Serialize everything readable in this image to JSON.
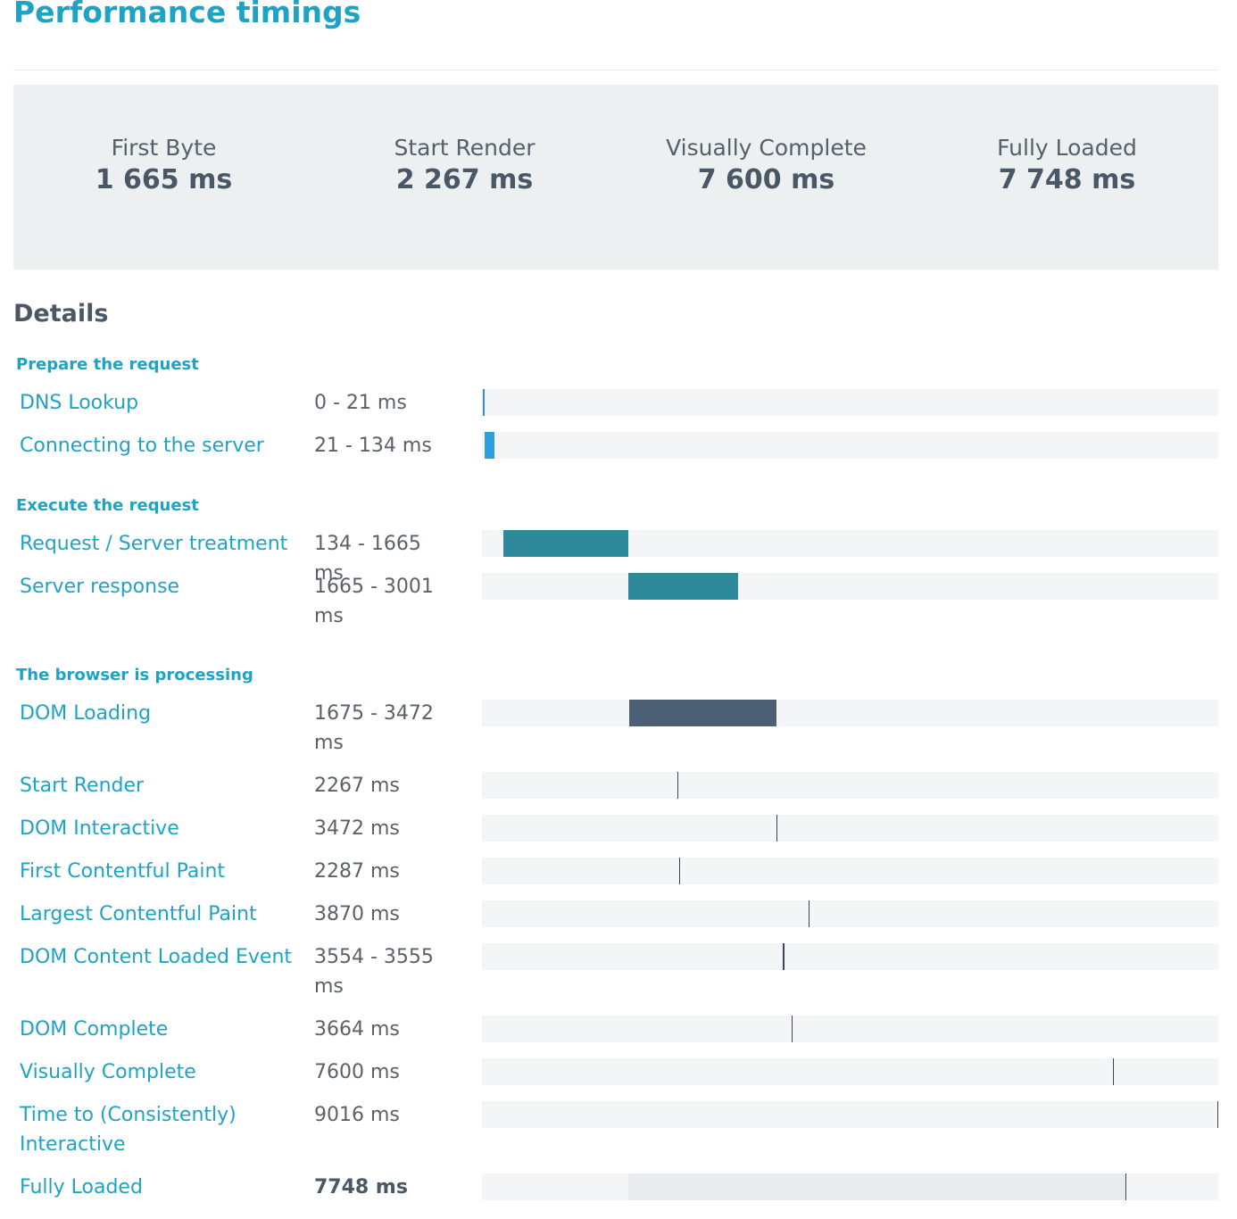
{
  "header": {
    "title": "Performance timings"
  },
  "summary": {
    "metrics": [
      {
        "label": "First Byte",
        "value": "1 665 ms"
      },
      {
        "label": "Start Render",
        "value": "2 267 ms"
      },
      {
        "label": "Visually Complete",
        "value": "7 600 ms"
      },
      {
        "label": "Fully Loaded",
        "value": "7 748 ms"
      }
    ]
  },
  "details": {
    "heading": "Details",
    "timeline_max_ms": 9016,
    "sections": [
      {
        "title": "Prepare the request",
        "rows": [
          {
            "label": "DNS Lookup",
            "time": "0 - 21 ms",
            "start": 0,
            "end": 21,
            "kind": "tick",
            "color": "#2d8fd6"
          },
          {
            "label": "Connecting to the server",
            "time": "21 - 134 ms",
            "start": 21,
            "end": 134,
            "kind": "bar",
            "color": "#2d9ee0"
          }
        ]
      },
      {
        "title": "Execute the request",
        "rows": [
          {
            "label": "Request / Server treatment",
            "time": "134 - 1665 ms",
            "start": 134,
            "end": 1665,
            "kind": "bar",
            "color": "#2e8a9b"
          },
          {
            "label": "Server response",
            "time": "1665 - 3001 ms",
            "start": 1665,
            "end": 3001,
            "kind": "bar",
            "color": "#2e8a9b"
          }
        ]
      },
      {
        "title": "The browser is processing",
        "rows": [
          {
            "label": "DOM Loading",
            "time": "1675 - 3472 ms",
            "start": 1675,
            "end": 3472,
            "kind": "bar",
            "color": "#4d5f74"
          },
          {
            "label": "Start Render",
            "time": "2267 ms",
            "start": 2267,
            "kind": "tick"
          },
          {
            "label": "DOM Interactive",
            "time": "3472 ms",
            "start": 3472,
            "kind": "tick"
          },
          {
            "label": "First Contentful Paint",
            "time": "2287 ms",
            "start": 2287,
            "kind": "tick"
          },
          {
            "label": "Largest Contentful Paint",
            "time": "3870 ms",
            "start": 3870,
            "kind": "tick"
          },
          {
            "label": "DOM Content Loaded Event",
            "time": "3554 - 3555 ms",
            "start": 3554,
            "end": 3555,
            "kind": "tick"
          },
          {
            "label": "DOM Complete",
            "time": "3664 ms",
            "start": 3664,
            "kind": "tick"
          },
          {
            "label": "Visually Complete",
            "time": "7600 ms",
            "start": 7600,
            "kind": "tick"
          },
          {
            "label": "Time to (Consistently) Interactive",
            "time": "9016 ms",
            "start": 9016,
            "kind": "tick"
          },
          {
            "label": "Fully Loaded",
            "time": "7748 ms",
            "start": 7748,
            "kind": "tick",
            "range_from": 1665,
            "range_color": "#e9ecee",
            "bold": true
          }
        ]
      }
    ]
  }
}
